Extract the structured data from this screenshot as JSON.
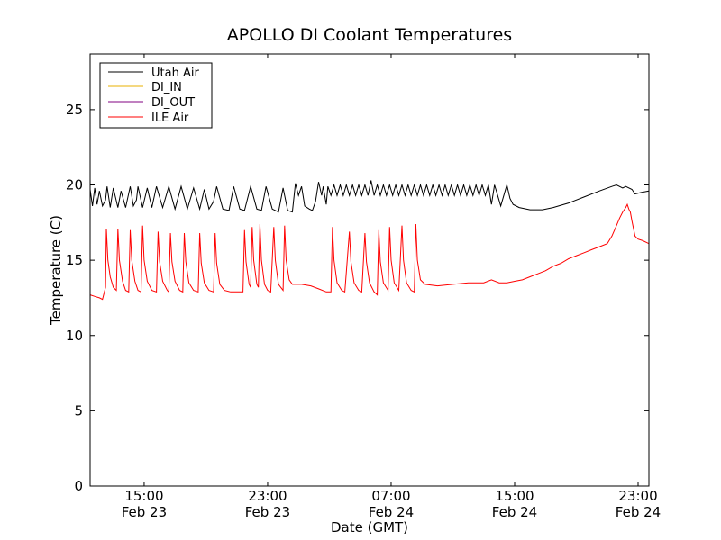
{
  "chart_data": {
    "type": "line",
    "title": "APOLLO DI Coolant Temperatures",
    "xlabel": "Date (GMT)",
    "ylabel": "Temperature (C)",
    "x_units": "hours since Feb 23 00:00 GMT",
    "xlim": [
      11.5,
      47.7
    ],
    "ylim": [
      0,
      28.7
    ],
    "yticks": [
      0,
      5,
      10,
      15,
      20,
      25
    ],
    "xticks": [
      {
        "value": 15,
        "line1": "15:00",
        "line2": "Feb 23"
      },
      {
        "value": 23,
        "line1": "23:00",
        "line2": "Feb 23"
      },
      {
        "value": 31,
        "line1": "07:00",
        "line2": "Feb 24"
      },
      {
        "value": 39,
        "line1": "15:00",
        "line2": "Feb 24"
      },
      {
        "value": 47,
        "line1": "23:00",
        "line2": "Feb 24"
      }
    ],
    "legend_position": "top-left",
    "series": [
      {
        "name": "Utah Air",
        "color": "#000000",
        "points": [
          [
            11.5,
            19.7
          ],
          [
            11.65,
            18.6
          ],
          [
            11.8,
            19.8
          ],
          [
            11.95,
            18.7
          ],
          [
            12.1,
            19.6
          ],
          [
            12.3,
            18.6
          ],
          [
            12.5,
            19.0
          ],
          [
            12.6,
            19.9
          ],
          [
            12.8,
            18.5
          ],
          [
            13.0,
            19.8
          ],
          [
            13.3,
            18.5
          ],
          [
            13.5,
            19.6
          ],
          [
            13.8,
            18.5
          ],
          [
            14.1,
            19.9
          ],
          [
            14.3,
            18.6
          ],
          [
            14.5,
            19.0
          ],
          [
            14.6,
            19.9
          ],
          [
            14.9,
            18.5
          ],
          [
            15.2,
            19.8
          ],
          [
            15.5,
            18.5
          ],
          [
            15.8,
            19.9
          ],
          [
            16.2,
            18.5
          ],
          [
            16.6,
            19.9
          ],
          [
            17.0,
            18.4
          ],
          [
            17.4,
            19.9
          ],
          [
            17.8,
            18.4
          ],
          [
            18.2,
            19.8
          ],
          [
            18.6,
            18.4
          ],
          [
            18.9,
            19.7
          ],
          [
            19.2,
            18.4
          ],
          [
            19.5,
            18.9
          ],
          [
            19.7,
            19.9
          ],
          [
            20.1,
            18.4
          ],
          [
            20.5,
            18.3
          ],
          [
            20.8,
            19.9
          ],
          [
            21.2,
            18.4
          ],
          [
            21.5,
            18.3
          ],
          [
            21.9,
            19.9
          ],
          [
            22.3,
            18.4
          ],
          [
            22.6,
            18.3
          ],
          [
            22.9,
            19.9
          ],
          [
            23.3,
            18.4
          ],
          [
            23.7,
            18.2
          ],
          [
            24.0,
            19.8
          ],
          [
            24.3,
            18.3
          ],
          [
            24.6,
            18.2
          ],
          [
            24.8,
            20.1
          ],
          [
            25.0,
            19.3
          ],
          [
            25.2,
            19.9
          ],
          [
            25.4,
            18.6
          ],
          [
            25.7,
            18.4
          ],
          [
            25.9,
            18.3
          ],
          [
            26.1,
            18.9
          ],
          [
            26.3,
            20.2
          ],
          [
            26.5,
            19.3
          ],
          [
            26.6,
            19.9
          ],
          [
            26.8,
            18.7
          ],
          [
            26.9,
            19.9
          ],
          [
            27.1,
            19.3
          ],
          [
            27.3,
            20.0
          ],
          [
            27.5,
            19.3
          ],
          [
            27.7,
            20.0
          ],
          [
            27.9,
            19.3
          ],
          [
            28.1,
            20.0
          ],
          [
            28.3,
            19.3
          ],
          [
            28.5,
            20.0
          ],
          [
            28.7,
            19.3
          ],
          [
            28.9,
            20.0
          ],
          [
            29.1,
            19.3
          ],
          [
            29.3,
            20.0
          ],
          [
            29.5,
            19.3
          ],
          [
            29.7,
            20.3
          ],
          [
            29.9,
            19.3
          ],
          [
            30.1,
            20.0
          ],
          [
            30.3,
            19.3
          ],
          [
            30.5,
            20.0
          ],
          [
            30.7,
            19.3
          ],
          [
            30.9,
            20.0
          ],
          [
            31.1,
            19.3
          ],
          [
            31.3,
            20.0
          ],
          [
            31.5,
            19.3
          ],
          [
            31.7,
            20.0
          ],
          [
            31.9,
            19.3
          ],
          [
            32.1,
            20.0
          ],
          [
            32.3,
            19.3
          ],
          [
            32.5,
            20.0
          ],
          [
            32.7,
            19.3
          ],
          [
            32.9,
            20.0
          ],
          [
            33.1,
            19.3
          ],
          [
            33.3,
            20.0
          ],
          [
            33.5,
            19.3
          ],
          [
            33.7,
            20.0
          ],
          [
            33.9,
            19.3
          ],
          [
            34.1,
            20.0
          ],
          [
            34.3,
            19.3
          ],
          [
            34.5,
            20.0
          ],
          [
            34.7,
            19.3
          ],
          [
            34.9,
            20.0
          ],
          [
            35.1,
            19.3
          ],
          [
            35.3,
            20.0
          ],
          [
            35.5,
            19.3
          ],
          [
            35.7,
            20.0
          ],
          [
            35.9,
            19.3
          ],
          [
            36.1,
            20.0
          ],
          [
            36.3,
            19.3
          ],
          [
            36.5,
            20.0
          ],
          [
            36.7,
            19.3
          ],
          [
            36.9,
            20.0
          ],
          [
            37.1,
            19.3
          ],
          [
            37.3,
            20.0
          ],
          [
            37.5,
            18.7
          ],
          [
            37.7,
            20.0
          ],
          [
            37.9,
            19.3
          ],
          [
            38.1,
            18.6
          ],
          [
            38.3,
            19.3
          ],
          [
            38.5,
            20.0
          ],
          [
            38.7,
            19.1
          ],
          [
            38.9,
            18.7
          ],
          [
            39.3,
            18.5
          ],
          [
            40.0,
            18.35
          ],
          [
            40.8,
            18.35
          ],
          [
            41.5,
            18.5
          ],
          [
            42.5,
            18.8
          ],
          [
            43.5,
            19.2
          ],
          [
            44.5,
            19.6
          ],
          [
            45.3,
            19.9
          ],
          [
            45.6,
            20.0
          ],
          [
            46.0,
            19.8
          ],
          [
            46.2,
            19.9
          ],
          [
            46.6,
            19.7
          ],
          [
            46.8,
            19.4
          ],
          [
            47.2,
            19.5
          ],
          [
            47.7,
            19.6
          ]
        ]
      },
      {
        "name": "DI_IN",
        "color": "#e8b000",
        "points": []
      },
      {
        "name": "DI_OUT",
        "color": "#800080",
        "points": []
      },
      {
        "name": "ILE Air",
        "color": "#ff0000",
        "points": [
          [
            11.5,
            12.7
          ],
          [
            11.8,
            12.6
          ],
          [
            12.1,
            12.5
          ],
          [
            12.3,
            12.4
          ],
          [
            12.5,
            13.2
          ],
          [
            12.55,
            17.1
          ],
          [
            12.65,
            15.0
          ],
          [
            12.8,
            13.9
          ],
          [
            13.0,
            13.2
          ],
          [
            13.2,
            13.0
          ],
          [
            13.3,
            17.1
          ],
          [
            13.4,
            15.0
          ],
          [
            13.6,
            13.6
          ],
          [
            13.8,
            13.0
          ],
          [
            14.0,
            12.9
          ],
          [
            14.1,
            17.0
          ],
          [
            14.2,
            15.0
          ],
          [
            14.4,
            13.6
          ],
          [
            14.6,
            13.0
          ],
          [
            14.8,
            12.9
          ],
          [
            14.9,
            17.3
          ],
          [
            15.0,
            15.0
          ],
          [
            15.2,
            13.6
          ],
          [
            15.5,
            13.0
          ],
          [
            15.8,
            12.9
          ],
          [
            15.9,
            16.9
          ],
          [
            16.0,
            14.9
          ],
          [
            16.2,
            13.6
          ],
          [
            16.5,
            13.0
          ],
          [
            16.6,
            12.9
          ],
          [
            16.7,
            16.8
          ],
          [
            16.8,
            14.9
          ],
          [
            17.0,
            13.6
          ],
          [
            17.3,
            13.0
          ],
          [
            17.5,
            12.9
          ],
          [
            17.6,
            16.8
          ],
          [
            17.7,
            14.9
          ],
          [
            17.9,
            13.5
          ],
          [
            18.2,
            13.0
          ],
          [
            18.5,
            12.9
          ],
          [
            18.6,
            16.8
          ],
          [
            18.7,
            14.8
          ],
          [
            18.9,
            13.5
          ],
          [
            19.2,
            13.0
          ],
          [
            19.5,
            12.9
          ],
          [
            19.6,
            16.8
          ],
          [
            19.7,
            14.8
          ],
          [
            19.9,
            13.4
          ],
          [
            20.2,
            13.0
          ],
          [
            20.6,
            12.9
          ],
          [
            21.0,
            12.9
          ],
          [
            21.4,
            12.9
          ],
          [
            21.5,
            17.0
          ],
          [
            21.6,
            14.9
          ],
          [
            21.8,
            13.4
          ],
          [
            21.9,
            13.2
          ],
          [
            22.0,
            17.2
          ],
          [
            22.1,
            15.0
          ],
          [
            22.3,
            13.4
          ],
          [
            22.4,
            13.2
          ],
          [
            22.5,
            17.4
          ],
          [
            22.6,
            15.0
          ],
          [
            22.8,
            13.4
          ],
          [
            23.0,
            13.0
          ],
          [
            23.2,
            12.9
          ],
          [
            23.4,
            17.2
          ],
          [
            23.5,
            15.0
          ],
          [
            23.7,
            13.4
          ],
          [
            24.0,
            13.0
          ],
          [
            24.1,
            17.3
          ],
          [
            24.2,
            15.0
          ],
          [
            24.4,
            13.7
          ],
          [
            24.6,
            13.4
          ],
          [
            25.2,
            13.4
          ],
          [
            25.8,
            13.3
          ],
          [
            26.3,
            13.1
          ],
          [
            26.8,
            12.9
          ],
          [
            27.1,
            12.9
          ],
          [
            27.2,
            17.2
          ],
          [
            27.3,
            15.0
          ],
          [
            27.5,
            13.5
          ],
          [
            27.8,
            13.0
          ],
          [
            28.0,
            12.9
          ],
          [
            28.3,
            16.9
          ],
          [
            28.4,
            14.9
          ],
          [
            28.6,
            13.5
          ],
          [
            28.9,
            13.0
          ],
          [
            29.1,
            12.9
          ],
          [
            29.3,
            16.8
          ],
          [
            29.4,
            14.9
          ],
          [
            29.6,
            13.5
          ],
          [
            29.9,
            12.9
          ],
          [
            30.1,
            12.7
          ],
          [
            30.2,
            17.0
          ],
          [
            30.3,
            14.9
          ],
          [
            30.5,
            13.5
          ],
          [
            30.8,
            13.0
          ],
          [
            30.9,
            17.2
          ],
          [
            31.0,
            15.0
          ],
          [
            31.2,
            13.5
          ],
          [
            31.5,
            13.0
          ],
          [
            31.7,
            17.3
          ],
          [
            31.8,
            15.0
          ],
          [
            32.0,
            13.5
          ],
          [
            32.3,
            13.0
          ],
          [
            32.5,
            12.9
          ],
          [
            32.6,
            17.4
          ],
          [
            32.7,
            15.0
          ],
          [
            32.9,
            13.7
          ],
          [
            33.2,
            13.4
          ],
          [
            34.0,
            13.3
          ],
          [
            35.0,
            13.4
          ],
          [
            36.0,
            13.5
          ],
          [
            37.0,
            13.5
          ],
          [
            37.5,
            13.7
          ],
          [
            38.0,
            13.5
          ],
          [
            38.5,
            13.5
          ],
          [
            39.0,
            13.6
          ],
          [
            39.5,
            13.7
          ],
          [
            40.0,
            13.9
          ],
          [
            40.5,
            14.1
          ],
          [
            41.0,
            14.3
          ],
          [
            41.5,
            14.6
          ],
          [
            42.0,
            14.8
          ],
          [
            42.5,
            15.1
          ],
          [
            43.0,
            15.3
          ],
          [
            43.5,
            15.5
          ],
          [
            44.0,
            15.7
          ],
          [
            44.5,
            15.9
          ],
          [
            45.0,
            16.1
          ],
          [
            45.3,
            16.6
          ],
          [
            45.6,
            17.3
          ],
          [
            45.8,
            17.8
          ],
          [
            46.0,
            18.2
          ],
          [
            46.2,
            18.5
          ],
          [
            46.3,
            18.7
          ],
          [
            46.4,
            18.4
          ],
          [
            46.5,
            18.2
          ],
          [
            46.6,
            17.6
          ],
          [
            46.8,
            16.6
          ],
          [
            47.0,
            16.4
          ],
          [
            47.3,
            16.3
          ],
          [
            47.7,
            16.1
          ]
        ]
      }
    ]
  }
}
